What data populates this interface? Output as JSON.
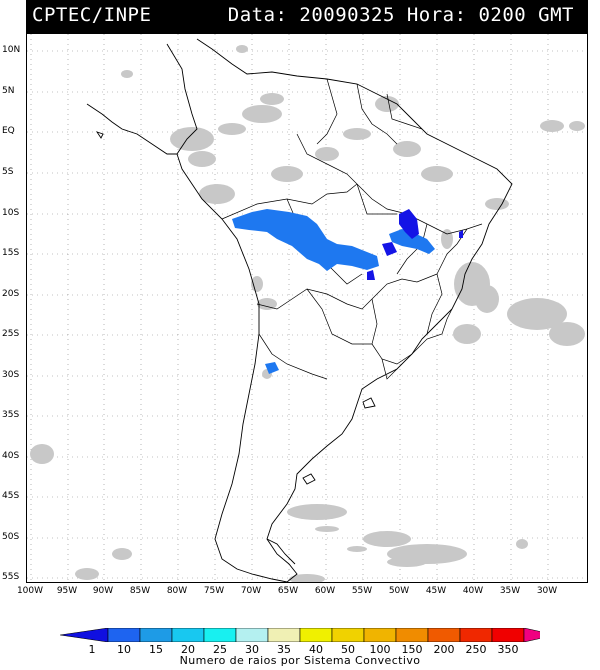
{
  "header": {
    "left": "CPTEC/INPE",
    "right": "Data: 20090325 Hora: 0200 GMT"
  },
  "map": {
    "lat_labels": [
      "10N",
      "5N",
      "EQ",
      "5S",
      "10S",
      "15S",
      "20S",
      "25S",
      "30S",
      "35S",
      "40S",
      "45S",
      "50S",
      "55S"
    ],
    "lon_labels": [
      "100W",
      "95W",
      "90W",
      "85W",
      "80W",
      "75W",
      "70W",
      "65W",
      "60W",
      "55W",
      "50W",
      "45W",
      "40W",
      "35W",
      "30W"
    ],
    "land_color": "#ffffff",
    "cloud_color": "#c8c8c8",
    "convective_color_light": "#1e78f0",
    "convective_color_dark": "#1414e6"
  },
  "colorbar": {
    "labels": [
      "1",
      "10",
      "15",
      "20",
      "25",
      "30",
      "35",
      "40",
      "50",
      "100",
      "150",
      "200",
      "250",
      "350"
    ],
    "colors": [
      "#1010e0",
      "#1e64f0",
      "#1e9be6",
      "#18c8f0",
      "#18f0f0",
      "#b4f0f0",
      "#f0f0b4",
      "#f0f000",
      "#f0d200",
      "#f0b400",
      "#f08c00",
      "#f05a00",
      "#f02800",
      "#f00000",
      "#f00080"
    ],
    "title": "Numero de raios por Sistema Convectivo"
  }
}
